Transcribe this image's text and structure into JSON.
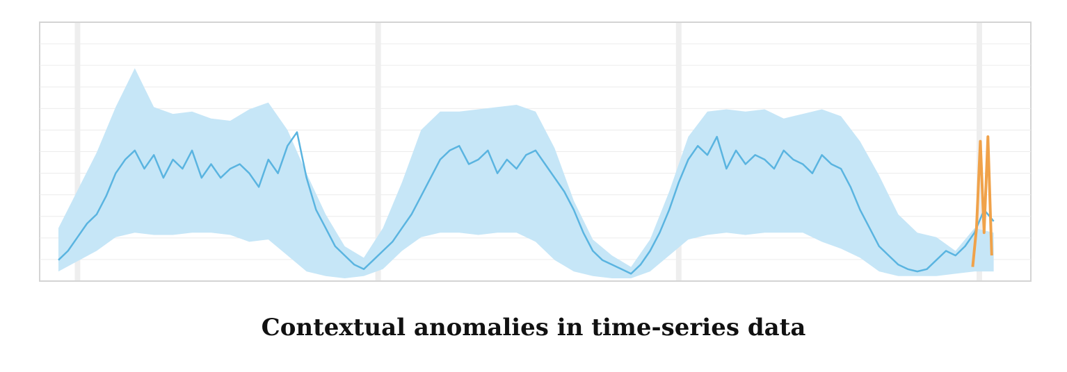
{
  "chart_data": {
    "type": "area",
    "title": "",
    "xlabel": "",
    "ylabel": "",
    "xlim": [
      0,
      100
    ],
    "ylim": [
      0,
      100
    ],
    "grid": true,
    "day_separators": [
      2,
      33.5,
      65,
      96.5
    ],
    "series": [
      {
        "role": "expected-band",
        "x": [
          0,
          4,
          6,
          8,
          10,
          12,
          14,
          16,
          18,
          20,
          22,
          24,
          26,
          28,
          30,
          32,
          34,
          36,
          38,
          40,
          42,
          44,
          46,
          48,
          50,
          52,
          54,
          56,
          58,
          60,
          62,
          64,
          66,
          68,
          70,
          72,
          74,
          76,
          78,
          80,
          82,
          84,
          86,
          88,
          90,
          92,
          94,
          96,
          98
        ],
        "upper": [
          22,
          55,
          75,
          92,
          75,
          72,
          73,
          70,
          69,
          74,
          77,
          65,
          46,
          28,
          14,
          9,
          22,
          42,
          65,
          73,
          73,
          74,
          75,
          76,
          73,
          57,
          34,
          17,
          10,
          5,
          17,
          38,
          62,
          73,
          74,
          73,
          74,
          70,
          72,
          74,
          71,
          60,
          45,
          28,
          20,
          18,
          12,
          22,
          20
        ],
        "lower": [
          3,
          12,
          18,
          20,
          19,
          19,
          20,
          20,
          19,
          16,
          17,
          10,
          3,
          1,
          0,
          1,
          4,
          12,
          18,
          20,
          20,
          19,
          20,
          20,
          16,
          8,
          3,
          1,
          0,
          0,
          3,
          10,
          17,
          19,
          20,
          19,
          20,
          20,
          20,
          16,
          13,
          9,
          3,
          1,
          1,
          1,
          2,
          3,
          3
        ]
      },
      {
        "role": "observed",
        "x": [
          0,
          1,
          2,
          3,
          4,
          5,
          6,
          7,
          8,
          9,
          10,
          11,
          12,
          13,
          14,
          15,
          16,
          17,
          18,
          19,
          20,
          21,
          22,
          23,
          24,
          25,
          26,
          27,
          28,
          29,
          30,
          31,
          32,
          33,
          34,
          35,
          36,
          37,
          38,
          39,
          40,
          41,
          42,
          43,
          44,
          45,
          46,
          47,
          48,
          49,
          50,
          51,
          52,
          53,
          54,
          55,
          56,
          57,
          58,
          59,
          60,
          61,
          62,
          63,
          64,
          65,
          66,
          67,
          68,
          69,
          70,
          71,
          72,
          73,
          74,
          75,
          76,
          77,
          78,
          79,
          80,
          81,
          82,
          83,
          84,
          85,
          86,
          87,
          88,
          89,
          90,
          91,
          92,
          93,
          94,
          95,
          96,
          97,
          98
        ],
        "y": [
          8,
          12,
          18,
          24,
          28,
          36,
          46,
          52,
          56,
          48,
          54,
          44,
          52,
          48,
          56,
          44,
          50,
          44,
          48,
          50,
          46,
          40,
          52,
          46,
          58,
          64,
          44,
          30,
          22,
          14,
          10,
          6,
          4,
          8,
          12,
          16,
          22,
          28,
          36,
          44,
          52,
          56,
          58,
          50,
          52,
          56,
          46,
          52,
          48,
          54,
          56,
          50,
          44,
          38,
          30,
          20,
          12,
          8,
          6,
          4,
          2,
          6,
          12,
          20,
          30,
          42,
          52,
          58,
          54,
          62,
          48,
          56,
          50,
          54,
          52,
          48,
          56,
          52,
          50,
          46,
          54,
          50,
          48,
          40,
          30,
          22,
          14,
          10,
          6,
          4,
          3,
          4,
          8,
          12,
          10,
          14,
          20,
          30,
          25
        ]
      },
      {
        "role": "anomaly",
        "x": [
          95.8,
          96.2,
          96.6,
          97.0,
          97.4,
          97.8
        ],
        "y": [
          5,
          22,
          60,
          20,
          62,
          10
        ]
      }
    ],
    "colors": {
      "band": "#c6e6f7",
      "line": "#5ab4e0",
      "anomaly": "#f0a24a",
      "grid": "#ececec",
      "frame": "#d4d4d4"
    }
  },
  "caption": "Contextual anomalies in time-series data"
}
